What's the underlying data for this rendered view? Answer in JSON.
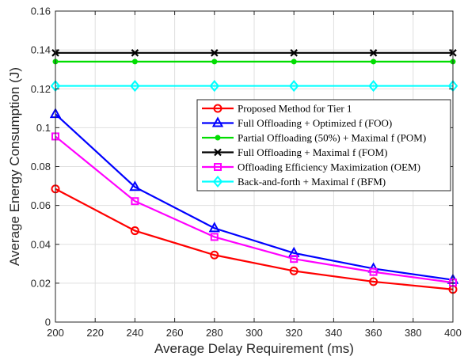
{
  "chart_data": {
    "type": "line",
    "xlabel": "Average Delay Requirement (ms)",
    "ylabel": "Average Energy Consumption (J)",
    "xlim": [
      200,
      400
    ],
    "ylim": [
      0,
      0.16
    ],
    "xticks": [
      200,
      220,
      240,
      260,
      280,
      300,
      320,
      340,
      360,
      380,
      400
    ],
    "yticks": [
      0,
      0.02,
      0.04,
      0.06,
      0.08,
      0.1,
      0.12,
      0.14,
      0.16
    ],
    "ytick_labels": [
      "0",
      "0.02",
      "0.04",
      "0.06",
      "0.08",
      "0.1",
      "0.12",
      "0.14",
      "0.16"
    ],
    "grid": true,
    "legend_position": "right",
    "x": [
      200,
      240,
      280,
      320,
      360,
      400
    ],
    "series": [
      {
        "name": "Proposed Method for Tier 1",
        "color": "#ff0000",
        "marker": "circle",
        "values": [
          0.0685,
          0.047,
          0.0345,
          0.0263,
          0.0208,
          0.0168
        ]
      },
      {
        "name": "Full Offloading + Optimized f (FOO)",
        "color": "#0000ff",
        "marker": "triangle",
        "values": [
          0.107,
          0.0695,
          0.0483,
          0.0355,
          0.0275,
          0.0217
        ]
      },
      {
        "name": "Partial Offloading (50%) + Maximal f (POM)",
        "color": "#00dd00",
        "marker": "dot",
        "values": [
          0.134,
          0.134,
          0.134,
          0.134,
          0.134,
          0.134
        ]
      },
      {
        "name": "Full Offloading + Maximal f (FOM)",
        "color": "#000000",
        "marker": "x",
        "values": [
          0.1385,
          0.1385,
          0.1385,
          0.1385,
          0.1385,
          0.1385
        ]
      },
      {
        "name": "Offloading Efficiency Maximization (OEM)",
        "color": "#ff00ff",
        "marker": "square",
        "values": [
          0.0955,
          0.0622,
          0.0438,
          0.0325,
          0.0258,
          0.0203
        ]
      },
      {
        "name": "Back-and-forth + Maximal f (BFM)",
        "color": "#00ffff",
        "marker": "diamond",
        "values": [
          0.1215,
          0.1215,
          0.1215,
          0.1215,
          0.1215,
          0.1215
        ]
      }
    ]
  }
}
